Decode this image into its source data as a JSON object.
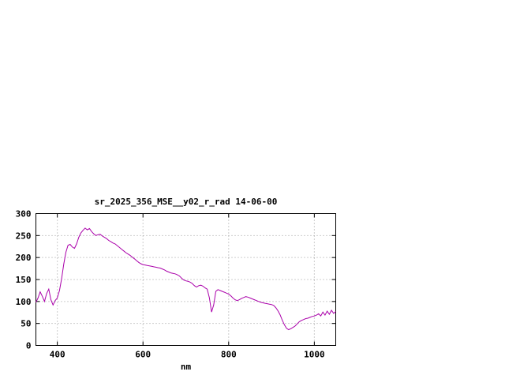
{
  "canvas": {
    "background": "#ffffff"
  },
  "chart_data": {
    "type": "line",
    "title": "sr_2025_356_MSE__y02_r_rad 14-06-00",
    "xlabel": "nm",
    "ylabel": "",
    "xlim": [
      350,
      1050
    ],
    "ylim": [
      0,
      300
    ],
    "xticks": [
      400,
      600,
      800,
      1000
    ],
    "yticks": [
      0,
      50,
      100,
      150,
      200,
      250,
      300
    ],
    "grid": true,
    "legend": "none",
    "line_color": "#aa00aa",
    "frame_color": "#000000",
    "grid_color": "#9a9a9a",
    "x": [
      350,
      355,
      360,
      365,
      370,
      375,
      380,
      385,
      390,
      395,
      400,
      405,
      410,
      415,
      420,
      425,
      430,
      435,
      440,
      445,
      450,
      455,
      460,
      465,
      470,
      475,
      480,
      485,
      490,
      495,
      500,
      505,
      510,
      515,
      520,
      525,
      530,
      535,
      540,
      545,
      550,
      555,
      560,
      565,
      570,
      575,
      580,
      585,
      590,
      595,
      600,
      605,
      610,
      615,
      620,
      625,
      630,
      635,
      640,
      645,
      650,
      655,
      660,
      665,
      670,
      675,
      680,
      685,
      690,
      695,
      700,
      705,
      710,
      715,
      720,
      725,
      730,
      735,
      740,
      745,
      750,
      755,
      760,
      765,
      770,
      775,
      780,
      785,
      790,
      795,
      800,
      805,
      810,
      815,
      820,
      825,
      830,
      835,
      840,
      845,
      850,
      855,
      860,
      865,
      870,
      875,
      880,
      885,
      890,
      895,
      900,
      905,
      910,
      915,
      920,
      925,
      930,
      935,
      940,
      945,
      950,
      955,
      960,
      965,
      970,
      975,
      980,
      985,
      990,
      995,
      1000,
      1005,
      1010,
      1015,
      1020,
      1025,
      1030,
      1035,
      1040,
      1045,
      1050
    ],
    "y": [
      98,
      108,
      122,
      112,
      100,
      118,
      128,
      104,
      92,
      102,
      108,
      125,
      152,
      185,
      212,
      228,
      230,
      224,
      221,
      231,
      246,
      256,
      262,
      267,
      263,
      266,
      259,
      254,
      250,
      252,
      253,
      249,
      246,
      243,
      239,
      236,
      233,
      231,
      227,
      223,
      219,
      215,
      211,
      208,
      205,
      201,
      197,
      193,
      189,
      186,
      184,
      183,
      182,
      181,
      180,
      179,
      178,
      177,
      176,
      174,
      172,
      169,
      167,
      165,
      164,
      163,
      161,
      158,
      153,
      149,
      147,
      146,
      144,
      141,
      136,
      133,
      136,
      137,
      135,
      131,
      128,
      108,
      76,
      92,
      123,
      127,
      125,
      123,
      121,
      119,
      117,
      113,
      108,
      104,
      102,
      104,
      107,
      109,
      111,
      110,
      108,
      106,
      104,
      102,
      100,
      98,
      97,
      96,
      95,
      94,
      93,
      91,
      86,
      79,
      70,
      58,
      47,
      39,
      36,
      38,
      41,
      44,
      49,
      54,
      57,
      59,
      61,
      62,
      64,
      66,
      67,
      69,
      72,
      67,
      76,
      69,
      78,
      71,
      80,
      73,
      77
    ]
  }
}
